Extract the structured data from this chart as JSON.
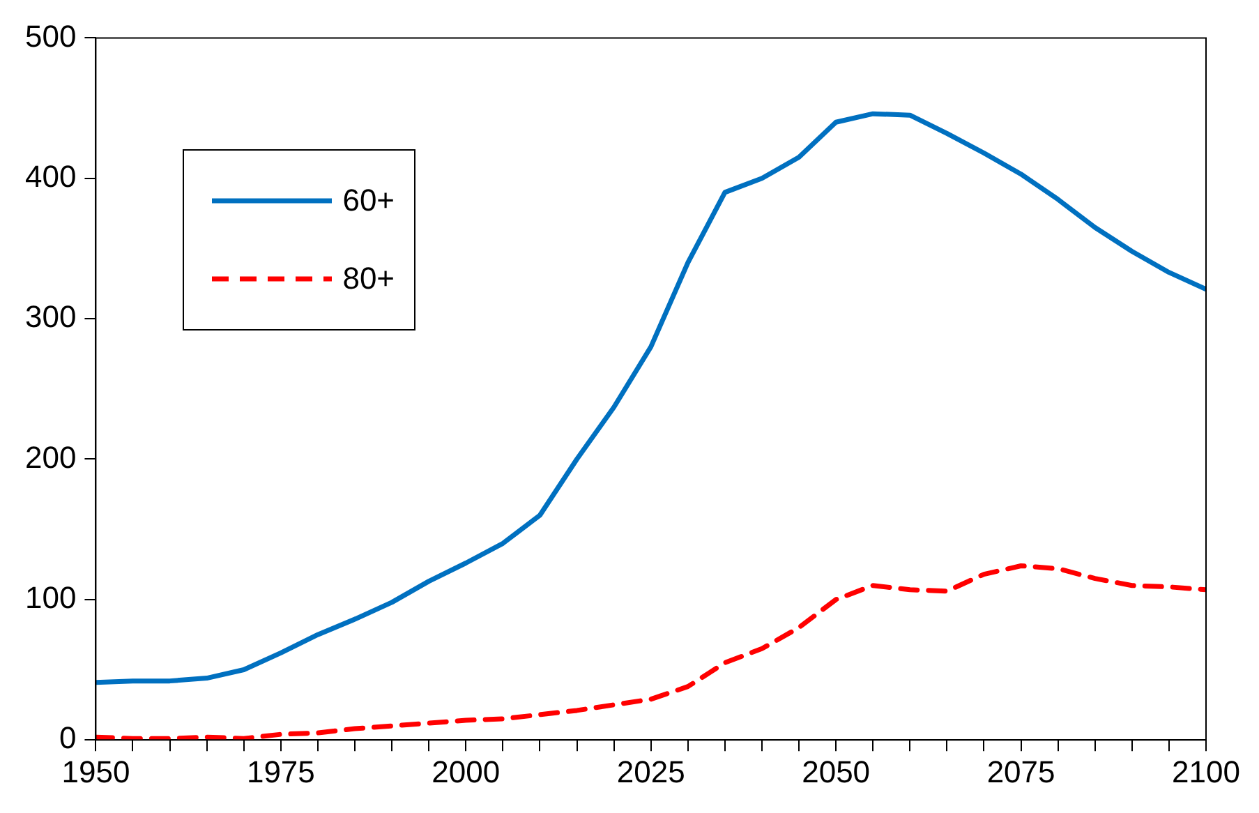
{
  "chart_data": {
    "type": "line",
    "x": [
      1950,
      1955,
      1960,
      1965,
      1970,
      1975,
      1980,
      1985,
      1990,
      1995,
      2000,
      2005,
      2010,
      2015,
      2020,
      2025,
      2030,
      2035,
      2040,
      2045,
      2050,
      2055,
      2060,
      2065,
      2070,
      2075,
      2080,
      2085,
      2090,
      2095,
      2100
    ],
    "series": [
      {
        "name": "60+",
        "color": "#0070c0",
        "line_style": "solid",
        "values": [
          41,
          42,
          42,
          44,
          50,
          62,
          75,
          86,
          98,
          113,
          126,
          140,
          160,
          200,
          237,
          280,
          340,
          390,
          400,
          415,
          440,
          446,
          445,
          432,
          418,
          403,
          385,
          365,
          348,
          333,
          321
        ]
      },
      {
        "name": "80+",
        "color": "#ff0000",
        "line_style": "dashed",
        "values": [
          2,
          1,
          1,
          2,
          1,
          4,
          5,
          8,
          10,
          12,
          14,
          15,
          18,
          21,
          25,
          29,
          38,
          55,
          65,
          80,
          100,
          110,
          107,
          106,
          118,
          124,
          122,
          115,
          110,
          109,
          107
        ]
      }
    ],
    "xlim": [
      1950,
      2100
    ],
    "xticks": [
      1950,
      {
        "value": 1955,
        "label": null
      },
      {
        "value": 1960,
        "label": null
      },
      {
        "value": 1965,
        "label": null
      },
      {
        "value": 1970,
        "label": null
      },
      1975,
      {
        "value": 1980,
        "label": null
      },
      {
        "value": 1985,
        "label": null
      },
      {
        "value": 1990,
        "label": null
      },
      {
        "value": 1995,
        "label": null
      },
      2000,
      {
        "value": 2005,
        "label": null
      },
      {
        "value": 2010,
        "label": null
      },
      {
        "value": 2015,
        "label": null
      },
      {
        "value": 2020,
        "label": null
      },
      2025,
      {
        "value": 2030,
        "label": null
      },
      {
        "value": 2035,
        "label": null
      },
      {
        "value": 2040,
        "label": null
      },
      {
        "value": 2045,
        "label": null
      },
      2050,
      {
        "value": 2055,
        "label": null
      },
      {
        "value": 2060,
        "label": null
      },
      {
        "value": 2065,
        "label": null
      },
      {
        "value": 2070,
        "label": null
      },
      2075,
      {
        "value": 2080,
        "label": null
      },
      {
        "value": 2085,
        "label": null
      },
      {
        "value": 2090,
        "label": null
      },
      {
        "value": 2095,
        "label": null
      },
      2100
    ],
    "ylim": [
      0,
      500
    ],
    "yticks": [
      0,
      100,
      200,
      300,
      400,
      500
    ],
    "legend": "top left",
    "marker": "none"
  }
}
